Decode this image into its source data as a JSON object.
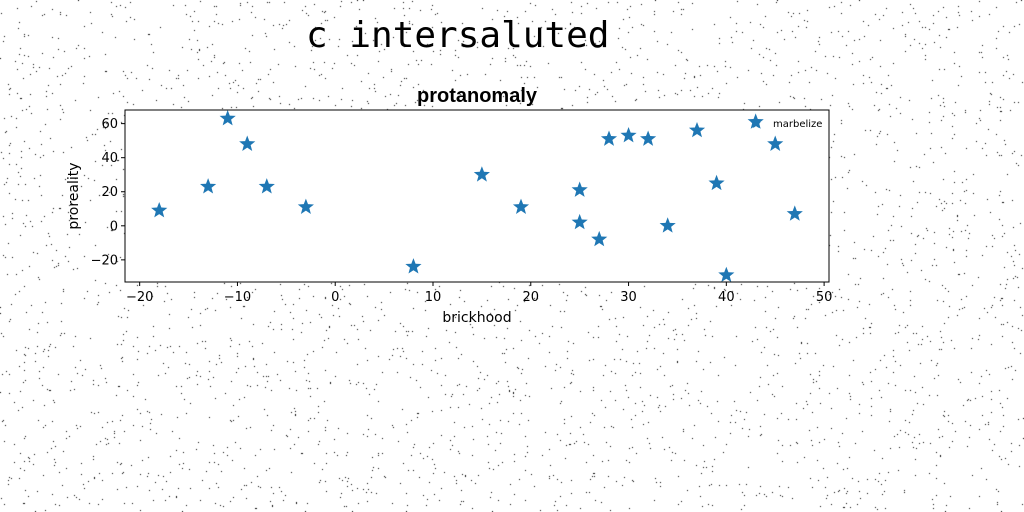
{
  "figure": {
    "suptitle": "c intersaluted"
  },
  "chart_data": {
    "type": "scatter",
    "title": "protanomaly",
    "xlabel": "brickhood",
    "ylabel": "proreality",
    "xlim": [
      -21.5,
      50.5
    ],
    "ylim": [
      -33,
      68
    ],
    "xticks": [
      -20,
      -10,
      0,
      10,
      20,
      30,
      40,
      50
    ],
    "yticks": [
      -20,
      0,
      20,
      40,
      60
    ],
    "grid": false,
    "legend_position": "upper-right",
    "marker": "star",
    "series": [
      {
        "name": "marbelize",
        "color": "#1f77b4",
        "x": [
          -18,
          -13,
          -11,
          -9,
          -7,
          -3,
          8,
          15,
          19,
          25,
          25,
          27,
          28,
          30,
          32,
          34,
          37,
          39,
          40,
          43,
          45,
          47
        ],
        "y": [
          9,
          23,
          63,
          48,
          23,
          11,
          -24,
          30,
          11,
          21,
          2,
          -8,
          51,
          53,
          51,
          0,
          56,
          25,
          -29,
          61,
          48,
          7
        ]
      }
    ]
  }
}
